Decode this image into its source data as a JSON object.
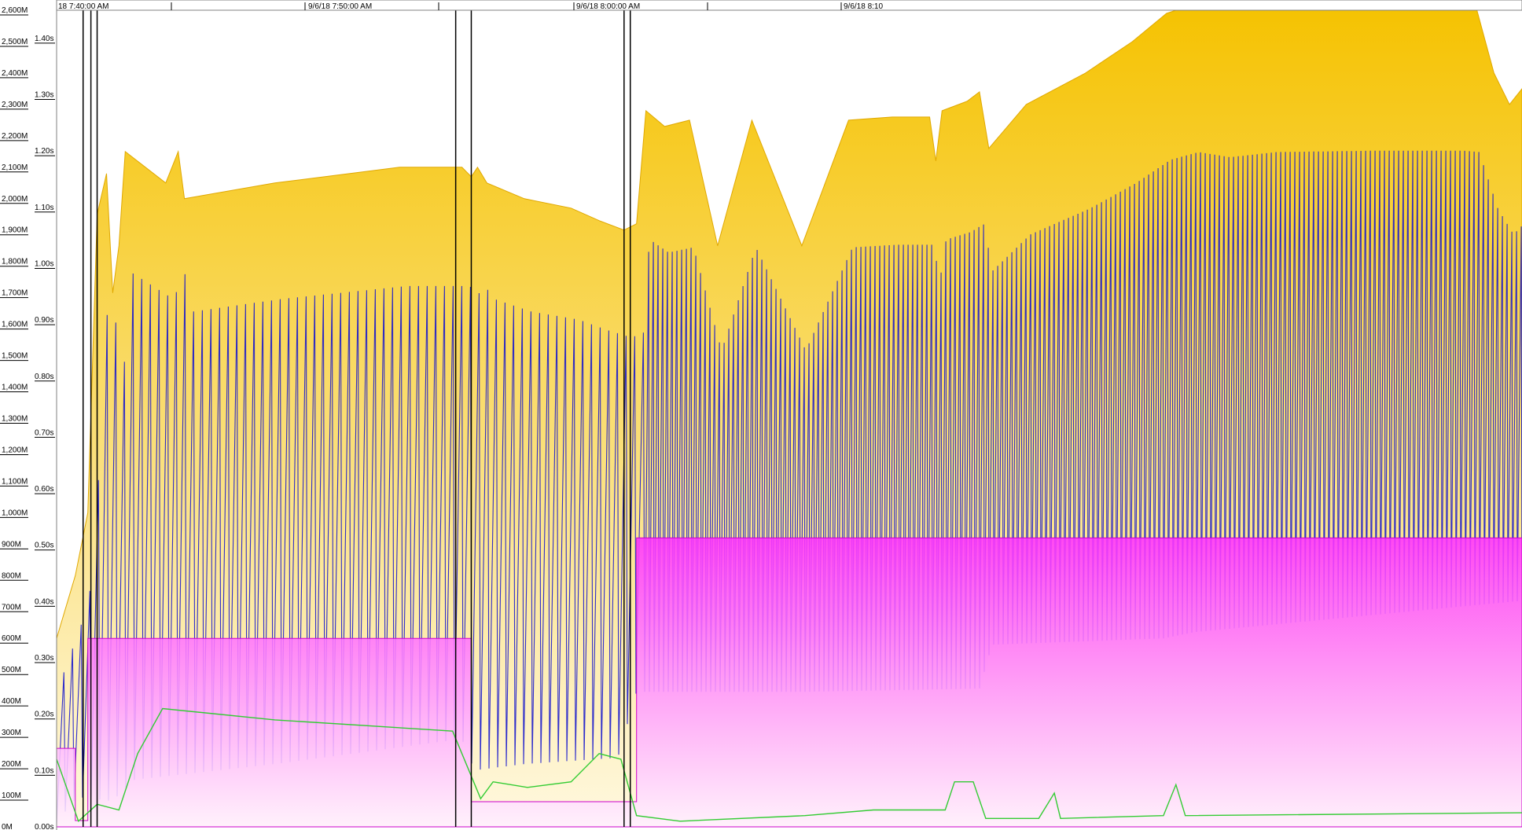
{
  "chart_data": {
    "type": "area",
    "title": "",
    "x_ticks": [
      "18 7:40:00 AM",
      "9/6/18 7:50:00 AM",
      "9/6/18 8:00:00 AM",
      "9/6/18 8:10"
    ],
    "memory_axis": {
      "ticks": [
        "0M",
        "100M",
        "200M",
        "300M",
        "400M",
        "500M",
        "600M",
        "700M",
        "800M",
        "900M",
        "1,000M",
        "1,100M",
        "1,200M",
        "1,300M",
        "1,400M",
        "1,500M",
        "1,600M",
        "1,700M",
        "1,800M",
        "1,900M",
        "2,000M",
        "2,100M",
        "2,200M",
        "2,300M",
        "2,400M",
        "2,500M",
        "2,600M"
      ],
      "range": [
        0,
        2600
      ]
    },
    "time_axis": {
      "ticks": [
        "0.00s",
        "0.10s",
        "0.20s",
        "0.30s",
        "0.40s",
        "0.50s",
        "0.60s",
        "0.70s",
        "0.80s",
        "0.90s",
        "1.00s",
        "1.10s",
        "1.20s",
        "1.30s",
        "1.40s"
      ],
      "range": [
        0,
        1.45
      ]
    },
    "x_range_minutes": [
      0,
      47
    ],
    "series": [
      {
        "color": "#f5c200",
        "kind": "area",
        "points": [
          [
            0,
            600
          ],
          [
            0.6,
            800
          ],
          [
            1,
            1000
          ],
          [
            1.3,
            1950
          ],
          [
            1.6,
            2080
          ],
          [
            1.8,
            1700
          ],
          [
            2,
            1850
          ],
          [
            2.2,
            2150
          ],
          [
            3.5,
            2050
          ],
          [
            3.9,
            2150
          ],
          [
            4.1,
            2000
          ],
          [
            7,
            2050
          ],
          [
            11,
            2100
          ],
          [
            13,
            2100
          ],
          [
            13.3,
            2070
          ],
          [
            13.5,
            2100
          ],
          [
            13.8,
            2050
          ],
          [
            15,
            2000
          ],
          [
            16.5,
            1970
          ],
          [
            17.4,
            1930
          ],
          [
            18.2,
            1900
          ],
          [
            18.6,
            1920
          ],
          [
            18.9,
            2280
          ],
          [
            19.5,
            2230
          ],
          [
            20.3,
            2250
          ],
          [
            21.2,
            1850
          ],
          [
            22.3,
            2250
          ],
          [
            23.9,
            1850
          ],
          [
            25.4,
            2250
          ],
          [
            26.8,
            2260
          ],
          [
            28,
            2260
          ],
          [
            28.2,
            2120
          ],
          [
            28.4,
            2280
          ],
          [
            29.2,
            2310
          ],
          [
            29.6,
            2340
          ],
          [
            29.9,
            2160
          ],
          [
            31.1,
            2300
          ],
          [
            33,
            2400
          ],
          [
            34.5,
            2500
          ],
          [
            35.6,
            2590
          ],
          [
            36.5,
            2620
          ],
          [
            37.5,
            2600
          ],
          [
            39,
            2620
          ],
          [
            42,
            2625
          ],
          [
            45,
            2625
          ],
          [
            45.5,
            2620
          ],
          [
            46.1,
            2400
          ],
          [
            46.6,
            2300
          ],
          [
            47,
            2350
          ]
        ]
      },
      {
        "color": "#1a1acc",
        "kind": "line-envelope",
        "lower_points": [
          [
            0,
            10
          ],
          [
            0.5,
            80
          ],
          [
            1,
            100
          ],
          [
            1.6,
            80
          ],
          [
            2,
            100
          ],
          [
            2.5,
            150
          ],
          [
            7,
            200
          ],
          [
            13,
            280
          ],
          [
            13.4,
            180
          ],
          [
            15,
            200
          ],
          [
            18,
            220
          ],
          [
            18.6,
            430
          ],
          [
            24,
            430
          ],
          [
            29.6,
            440
          ],
          [
            30,
            580
          ],
          [
            35.5,
            600
          ],
          [
            36.5,
            620
          ],
          [
            47,
            720
          ]
        ]
      },
      {
        "color": "#ff33ff",
        "kind": "area",
        "points": [
          [
            0,
            250
          ],
          [
            0.6,
            250
          ],
          [
            0.6,
            20
          ],
          [
            1,
            20
          ],
          [
            1,
            600
          ],
          [
            13,
            600
          ],
          [
            13.3,
            600
          ],
          [
            13.3,
            80
          ],
          [
            15,
            80
          ],
          [
            18.6,
            80
          ],
          [
            18.6,
            920
          ],
          [
            47,
            920
          ]
        ]
      },
      {
        "color": "#33cc33",
        "kind": "line",
        "points": [
          [
            0,
            0.12
          ],
          [
            0.7,
            0.01
          ],
          [
            1.3,
            0.04
          ],
          [
            2,
            0.03
          ],
          [
            2.6,
            0.13
          ],
          [
            3.4,
            0.21
          ],
          [
            7,
            0.19
          ],
          [
            12.7,
            0.17
          ],
          [
            13.6,
            0.05
          ],
          [
            14,
            0.08
          ],
          [
            15.1,
            0.07
          ],
          [
            16.5,
            0.08
          ],
          [
            17.4,
            0.13
          ],
          [
            18.1,
            0.12
          ],
          [
            18.6,
            0.02
          ],
          [
            20,
            0.01
          ],
          [
            24,
            0.02
          ],
          [
            26.2,
            0.03
          ],
          [
            27,
            0.03
          ],
          [
            28.5,
            0.03
          ],
          [
            28.8,
            0.08
          ],
          [
            29.4,
            0.08
          ],
          [
            29.8,
            0.015
          ],
          [
            31.5,
            0.015
          ],
          [
            32,
            0.06
          ],
          [
            32.2,
            0.015
          ],
          [
            35.5,
            0.02
          ],
          [
            35.9,
            0.075
          ],
          [
            36.2,
            0.02
          ],
          [
            47,
            0.025
          ]
        ]
      }
    ],
    "markers": [
      {
        "x": 0.85
      },
      {
        "x": 1.1
      },
      {
        "x": 1.3
      },
      {
        "x": 12.8
      },
      {
        "x": 13.3
      },
      {
        "x": 18.2
      },
      {
        "x": 18.4
      }
    ],
    "grid": false,
    "legend": "none"
  }
}
